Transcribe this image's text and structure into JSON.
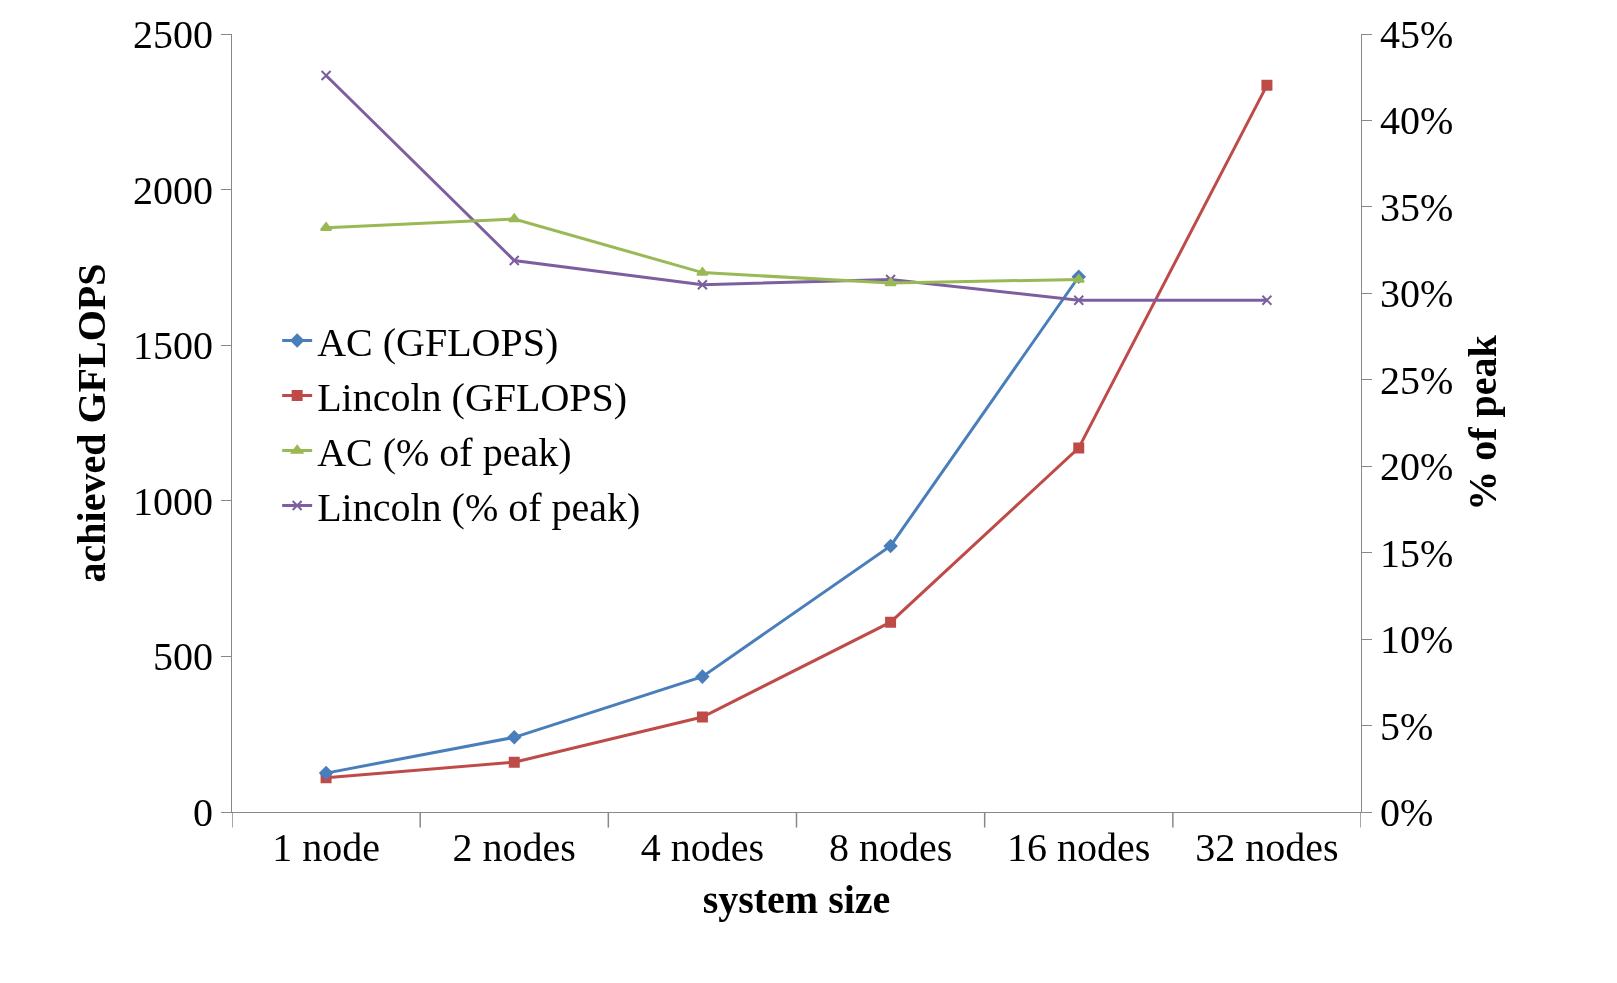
{
  "chart_data": {
    "type": "line",
    "xlabel": "system size",
    "ylabel": "achieved GFLOPS",
    "y2label": "% of peak",
    "categories": [
      "1 node",
      "2 nodes",
      "4 nodes",
      "8 nodes",
      "16 nodes",
      "32 nodes"
    ],
    "series": [
      {
        "name": "AC (GFLOPS)",
        "color": "#4a7ebb",
        "marker": "diamond",
        "values": [
          125,
          240,
          435,
          855,
          1720,
          null
        ]
      },
      {
        "name": "Lincoln (GFLOPS)",
        "color": "#be4b48",
        "marker": "square",
        "values": [
          110,
          160,
          305,
          610,
          1170,
          2335
        ]
      },
      {
        "name": "AC (% of peak)",
        "color": "#98b954",
        "marker": "triangle",
        "axis": "y2",
        "values": [
          33.8,
          34.3,
          31.2,
          30.6,
          30.8,
          null
        ]
      },
      {
        "name": "Lincoln (% of peak)",
        "color": "#7d5fa0",
        "marker": "cross",
        "axis": "y2",
        "values": [
          42.6,
          31.9,
          30.5,
          30.8,
          29.6,
          29.6
        ]
      }
    ],
    "ylim": [
      0,
      2500
    ],
    "yticks": [
      0,
      500,
      1000,
      1500,
      2000,
      2500
    ],
    "y2lim": [
      0,
      45
    ],
    "y2ticks": [
      {
        "value": 0,
        "label": "0%"
      },
      {
        "value": 5,
        "label": "5%"
      },
      {
        "value": 10,
        "label": "10%"
      },
      {
        "value": 15,
        "label": "15%"
      },
      {
        "value": 20,
        "label": "20%"
      },
      {
        "value": 25,
        "label": "25%"
      },
      {
        "value": 30,
        "label": "30%"
      },
      {
        "value": 35,
        "label": "35%"
      },
      {
        "value": 40,
        "label": "40%"
      },
      {
        "value": 45,
        "label": "45%"
      }
    ],
    "legend": "left",
    "line_style": "solid"
  }
}
